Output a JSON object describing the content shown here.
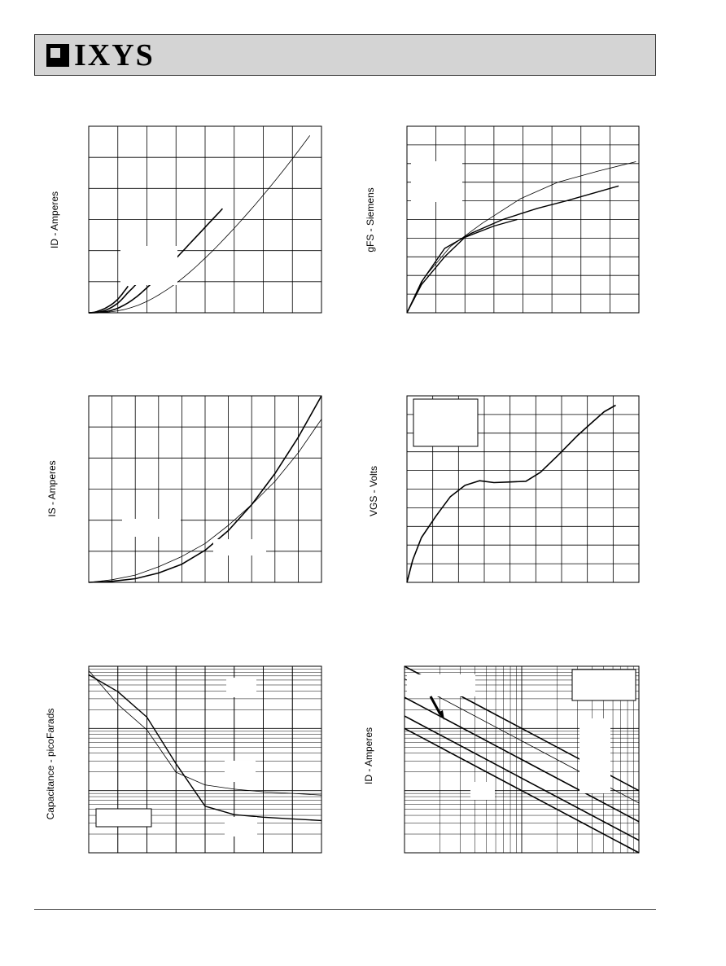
{
  "header": {
    "brand": "IXYS"
  },
  "chart_data": [
    {
      "type": "line",
      "ylabel": "ID - Amperes",
      "series": [
        {
          "points": [
            [
              0,
              0
            ],
            [
              0.1,
              0.05
            ],
            [
              0.2,
              0.14
            ],
            [
              0.27,
              0.3
            ],
            [
              0.35,
              0.5
            ],
            [
              0.45,
              0.75
            ],
            [
              0.55,
              1.1
            ],
            [
              0.65,
              1.5
            ],
            [
              0.75,
              1.95
            ],
            [
              0.85,
              2.5
            ],
            [
              0.95,
              3.15
            ],
            [
              1.0,
              3.5
            ],
            [
              1.05,
              3.9
            ],
            [
              1.1,
              4.35
            ],
            [
              1.15,
              4.8
            ],
            [
              1.2,
              5.35
            ],
            [
              1.25,
              5.8
            ],
            [
              1.3,
              6.3
            ],
            [
              1.35,
              6.85
            ]
          ]
        },
        {
          "points": [
            [
              0,
              0
            ],
            [
              0.2,
              0.05
            ],
            [
              0.3,
              0.12
            ],
            [
              0.4,
              0.25
            ],
            [
              0.5,
              0.45
            ],
            [
              0.6,
              0.7
            ],
            [
              0.7,
              1.05
            ],
            [
              0.8,
              1.45
            ],
            [
              0.9,
              1.95
            ],
            [
              1.0,
              2.5
            ],
            [
              1.1,
              3.15
            ],
            [
              1.2,
              3.95
            ],
            [
              1.3,
              4.8
            ],
            [
              1.4,
              5.6
            ],
            [
              1.5,
              6.3
            ],
            [
              1.55,
              6.7
            ],
            [
              1.6,
              7.1
            ],
            [
              1.68,
              7.7
            ],
            [
              1.75,
              8.3
            ],
            [
              1.82,
              8.9
            ],
            [
              1.9,
              9.6
            ],
            [
              1.97,
              10.2
            ],
            [
              2.0,
              10.6
            ],
            [
              2.05,
              11.0
            ],
            [
              2.1,
              11.4
            ],
            [
              2.15,
              11.85
            ],
            [
              2.2,
              12.3
            ],
            [
              2.25,
              12.8
            ],
            [
              2.3,
              13.3
            ],
            [
              2.35,
              13.8
            ],
            [
              2.4,
              14.35
            ],
            [
              2.45,
              14.9
            ],
            [
              2.5,
              15.45
            ]
          ]
        },
        {
          "points": [
            [
              0,
              0
            ],
            [
              0.3,
              0.05
            ],
            [
              0.45,
              0.12
            ],
            [
              0.6,
              0.3
            ],
            [
              0.75,
              0.55
            ],
            [
              0.9,
              0.9
            ],
            [
              1.05,
              1.35
            ],
            [
              1.2,
              1.9
            ],
            [
              1.35,
              2.55
            ],
            [
              1.5,
              3.3
            ],
            [
              1.65,
              4.15
            ],
            [
              1.8,
              5.1
            ],
            [
              1.95,
              6.1
            ],
            [
              2.1,
              7.15
            ],
            [
              2.25,
              8.25
            ],
            [
              2.4,
              9.35
            ],
            [
              2.55,
              10.5
            ],
            [
              2.7,
              11.65
            ],
            [
              2.85,
              12.8
            ],
            [
              3.0,
              14.0
            ],
            [
              3.15,
              15.2
            ],
            [
              3.3,
              16.4
            ],
            [
              3.45,
              17.6
            ],
            [
              3.6,
              18.8
            ],
            [
              3.75,
              20.0
            ],
            [
              3.9,
              21.2
            ],
            [
              4.05,
              22.4
            ],
            [
              4.2,
              23.6
            ],
            [
              4.35,
              24.8
            ],
            [
              4.5,
              26.0
            ],
            [
              4.6,
              26.8
            ]
          ]
        },
        {
          "points": [
            [
              0,
              0
            ],
            [
              0.45,
              0.08
            ],
            [
              0.7,
              0.2
            ],
            [
              0.95,
              0.45
            ],
            [
              1.2,
              0.8
            ],
            [
              1.45,
              1.3
            ],
            [
              1.7,
              1.95
            ],
            [
              1.95,
              2.75
            ],
            [
              2.2,
              3.7
            ],
            [
              2.45,
              4.8
            ],
            [
              2.7,
              6.0
            ],
            [
              2.95,
              7.3
            ],
            [
              3.2,
              8.75
            ],
            [
              3.45,
              10.3
            ],
            [
              3.7,
              11.95
            ],
            [
              3.95,
              13.7
            ],
            [
              4.2,
              15.5
            ],
            [
              4.45,
              17.4
            ],
            [
              4.7,
              19.35
            ],
            [
              4.95,
              21.35
            ],
            [
              5.2,
              23.4
            ],
            [
              5.45,
              25.5
            ],
            [
              5.7,
              27.65
            ],
            [
              5.95,
              29.85
            ],
            [
              6.2,
              32.1
            ],
            [
              6.45,
              34.4
            ],
            [
              6.7,
              36.75
            ],
            [
              6.95,
              39.15
            ],
            [
              7.2,
              41.6
            ],
            [
              7.45,
              44.1
            ],
            [
              7.6,
              45.6
            ]
          ]
        }
      ]
    },
    {
      "type": "line",
      "ylabel": "gFS - Siemens",
      "series": [
        {
          "points": [
            [
              0,
              0
            ],
            [
              0.5,
              3
            ],
            [
              1.3,
              6
            ],
            [
              2,
              8.1
            ],
            [
              3,
              9.3
            ],
            [
              3.8,
              10
            ]
          ]
        },
        {
          "points": [
            [
              0,
              0
            ],
            [
              0.5,
              3.3
            ],
            [
              1.3,
              6.9
            ],
            [
              2.2,
              8.5
            ],
            [
              3.3,
              10
            ],
            [
              4.5,
              11.2
            ],
            [
              5.5,
              12
            ],
            [
              7.3,
              13.6
            ]
          ]
        },
        {
          "points": [
            [
              0,
              0
            ],
            [
              0.6,
              3.8
            ],
            [
              1.5,
              7.1
            ],
            [
              2.6,
              9.6
            ],
            [
              3.9,
              12.2
            ],
            [
              5.2,
              14
            ],
            [
              6.6,
              15.2
            ],
            [
              7.9,
              16.2
            ]
          ]
        }
      ]
    },
    {
      "type": "line",
      "ylabel": "IS - Amperes",
      "series": [
        {
          "points": [
            [
              0,
              0
            ],
            [
              0.1,
              0.05
            ],
            [
              0.2,
              0.14
            ],
            [
              0.3,
              0.3
            ],
            [
              0.4,
              0.5
            ],
            [
              0.5,
              0.75
            ],
            [
              0.6,
              1.1
            ],
            [
              0.7,
              1.5
            ],
            [
              0.8,
              1.95
            ],
            [
              0.9,
              2.5
            ],
            [
              1.0,
              3.15
            ]
          ]
        },
        {
          "points": [
            [
              0,
              0
            ],
            [
              0.1,
              0.02
            ],
            [
              0.2,
              0.07
            ],
            [
              0.3,
              0.18
            ],
            [
              0.4,
              0.35
            ],
            [
              0.5,
              0.62
            ],
            [
              0.6,
              1.0
            ],
            [
              0.7,
              1.5
            ],
            [
              0.8,
              2.1
            ],
            [
              0.9,
              2.8
            ],
            [
              1.0,
              3.6
            ]
          ]
        }
      ]
    },
    {
      "type": "line",
      "ylabel": "VGS - Volts",
      "series": [
        {
          "points": [
            [
              0,
              0
            ],
            [
              0.2,
              1.2
            ],
            [
              0.5,
              2.4
            ],
            [
              1,
              3.55
            ],
            [
              1.5,
              4.6
            ],
            [
              2,
              5.2
            ],
            [
              2.5,
              5.45
            ],
            [
              3,
              5.35
            ],
            [
              3.5,
              5.38
            ],
            [
              4.1,
              5.42
            ],
            [
              4.6,
              5.9
            ],
            [
              5.2,
              6.8
            ],
            [
              5.9,
              7.9
            ],
            [
              6.4,
              8.6
            ],
            [
              6.8,
              9.15
            ],
            [
              7.2,
              9.5
            ]
          ]
        }
      ]
    },
    {
      "type": "line",
      "ylabel": "Capacitance - picoFarads",
      "series": [
        {
          "points": [
            [
              0,
              2.1
            ],
            [
              0.5,
              1.9
            ],
            [
              1.0,
              1.6
            ],
            [
              1.5,
              1.05
            ],
            [
              2.0,
              0.55
            ],
            [
              2.5,
              0.45
            ],
            [
              3.0,
              0.42
            ],
            [
              3.5,
              0.4
            ],
            [
              4.0,
              0.38
            ]
          ]
        },
        {
          "points": [
            [
              0,
              2.15
            ],
            [
              0.5,
              1.75
            ],
            [
              1.0,
              1.45
            ],
            [
              1.5,
              0.95
            ],
            [
              2.0,
              0.8
            ],
            [
              2.5,
              0.75
            ],
            [
              3.0,
              0.72
            ],
            [
              3.5,
              0.7
            ],
            [
              4.0,
              0.68
            ]
          ]
        }
      ]
    },
    {
      "type": "line",
      "ylabel": "ID - Amperes",
      "series": [
        {
          "points": [
            [
              0,
              2
            ],
            [
              1,
              1
            ],
            [
              2,
              0
            ]
          ]
        },
        {
          "points": [
            [
              0,
              2.2
            ],
            [
              1,
              1.2
            ],
            [
              2,
              0.2
            ]
          ]
        },
        {
          "points": [
            [
              0,
              2.5
            ],
            [
              1,
              1.5
            ],
            [
              2,
              0.5
            ]
          ]
        },
        {
          "points": [
            [
              0,
              2.8
            ],
            [
              1,
              1.8
            ],
            [
              2,
              0.8
            ]
          ]
        },
        {
          "points": [
            [
              0,
              3.0
            ],
            [
              1,
              2.0
            ],
            [
              2,
              1.0
            ]
          ]
        }
      ]
    }
  ]
}
